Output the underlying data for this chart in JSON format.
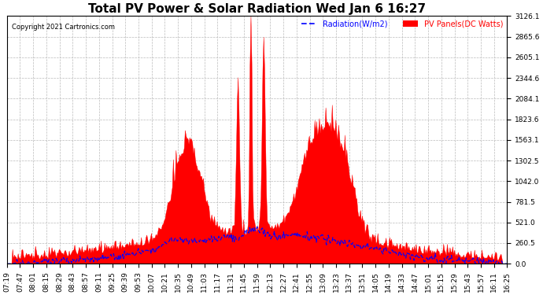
{
  "title": "Total PV Power & Solar Radiation Wed Jan 6 16:27",
  "copyright": "Copyright 2021 Cartronics.com",
  "legend_radiation": "Radiation(W/m2)",
  "legend_pv": "PV Panels(DC Watts)",
  "ymax": 3126.1,
  "yticks": [
    0.0,
    260.5,
    521.0,
    781.5,
    1042.0,
    1302.5,
    1563.1,
    1823.6,
    2084.1,
    2344.6,
    2605.1,
    2865.6,
    3126.1
  ],
  "xtick_labels": [
    "07:19",
    "07:47",
    "08:01",
    "08:15",
    "08:29",
    "08:43",
    "08:57",
    "09:11",
    "09:25",
    "09:39",
    "09:53",
    "10:07",
    "10:21",
    "10:35",
    "10:49",
    "11:03",
    "11:17",
    "11:31",
    "11:45",
    "11:59",
    "12:13",
    "12:27",
    "12:41",
    "12:55",
    "13:09",
    "13:23",
    "13:37",
    "13:51",
    "14:05",
    "14:19",
    "14:33",
    "14:47",
    "15:01",
    "15:15",
    "15:29",
    "15:43",
    "15:57",
    "16:11",
    "16:25"
  ],
  "background_color": "#ffffff",
  "plot_bg_color": "#ffffff",
  "grid_color": "#bbbbbb",
  "pv_color": "#ff0000",
  "radiation_color": "#0000ff",
  "title_fontsize": 11,
  "tick_fontsize": 6.5
}
